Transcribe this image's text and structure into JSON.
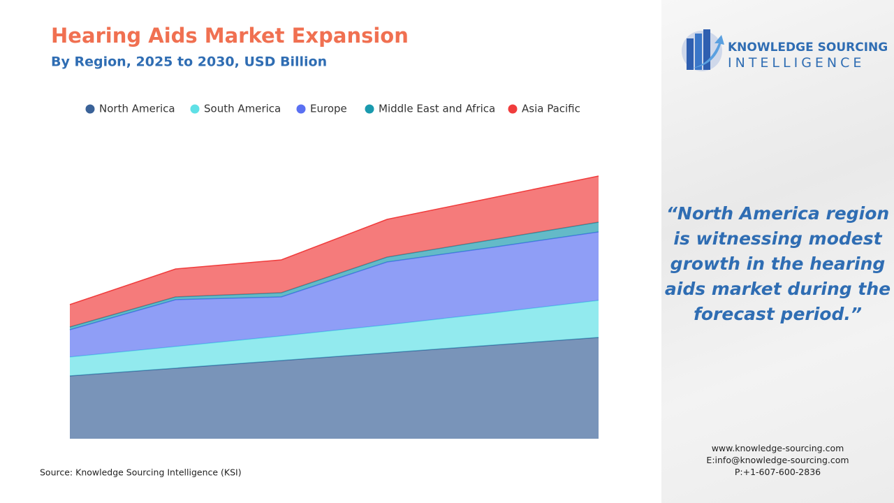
{
  "chart_data": {
    "type": "stacked-area",
    "title": "Hearing Aids Market Expansion",
    "subtitle": "By Region, 2025 to 2030, USD Billion",
    "categories": [
      null,
      null,
      null,
      null,
      null,
      null
    ],
    "ylim": [
      0,
      25
    ],
    "series": [
      {
        "name": "North America",
        "color": "#3a6298",
        "values": [
          4.5,
          5.05,
          5.6,
          6.15,
          6.7,
          7.25
        ]
      },
      {
        "name": "South America",
        "color": "#5fe0e6",
        "values": [
          1.35,
          1.55,
          1.75,
          2.0,
          2.3,
          2.65
        ]
      },
      {
        "name": "Europe",
        "color": "#5a70f2",
        "values": [
          1.95,
          3.35,
          2.8,
          4.5,
          4.7,
          4.9
        ]
      },
      {
        "name": "Middle East and Africa",
        "color": "#1a9aae",
        "values": [
          0.2,
          0.2,
          0.3,
          0.35,
          0.55,
          0.7
        ]
      },
      {
        "name": "Asia Pacific",
        "color": "#f03c3c",
        "values": [
          1.6,
          2.0,
          2.35,
          2.7,
          3.0,
          3.3
        ]
      }
    ],
    "source": "Source: Knowledge Sourcing Intelligence (KSI)"
  },
  "sidebar": {
    "logo_line1": "KNOWLEDGE SOURCING",
    "logo_line2": "INTELLIGENCE",
    "quote": "“North America region is witnessing modest growth in the hearing aids market during the forecast period.”",
    "website": "www.knowledge-sourcing.com",
    "email": "E:info@knowledge-sourcing.com",
    "phone": "P:+1-607-600-2836"
  }
}
